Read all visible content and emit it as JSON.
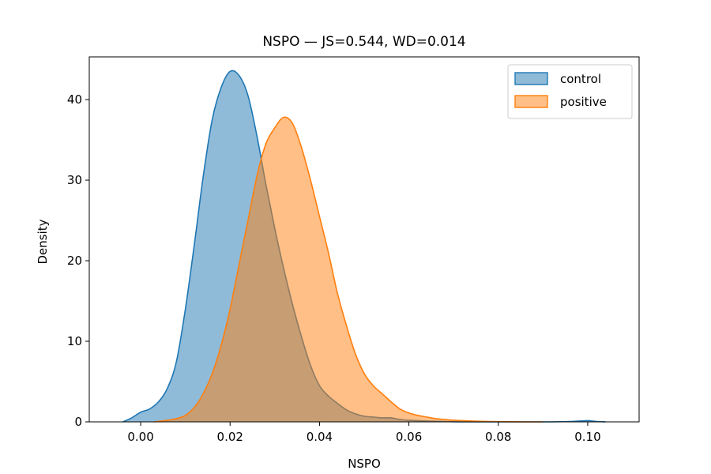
{
  "chart_data": {
    "type": "area",
    "title": "NSPO — JS=0.544, WD=0.014",
    "xlabel": "NSPO",
    "ylabel": "Density",
    "xlim": [
      -0.0115,
      0.1115
    ],
    "ylim": [
      0,
      45.3
    ],
    "xticks": [
      0.0,
      0.02,
      0.04,
      0.06,
      0.08,
      0.1
    ],
    "xtick_labels": [
      "0.00",
      "0.02",
      "0.04",
      "0.06",
      "0.08",
      "0.10"
    ],
    "yticks": [
      0,
      10,
      20,
      30,
      40
    ],
    "ytick_labels": [
      "0",
      "10",
      "20",
      "30",
      "40"
    ],
    "grid": false,
    "legend_position": "top-right",
    "series": [
      {
        "name": "control",
        "color": "#1f77b4",
        "fill": "#1f77b4",
        "fill_opacity": 0.5,
        "x": [
          -0.004,
          -0.002,
          0.0,
          0.002,
          0.004,
          0.006,
          0.008,
          0.01,
          0.012,
          0.014,
          0.016,
          0.018,
          0.02,
          0.022,
          0.024,
          0.026,
          0.028,
          0.03,
          0.032,
          0.034,
          0.036,
          0.038,
          0.04,
          0.042,
          0.044,
          0.046,
          0.048,
          0.05,
          0.052,
          0.054,
          0.056,
          0.058,
          0.06,
          0.064,
          0.068,
          0.072,
          0.08,
          0.09,
          0.096,
          0.098,
          0.1,
          0.102,
          0.104
        ],
        "y": [
          0.0,
          0.5,
          1.2,
          1.6,
          2.5,
          4.2,
          7.5,
          14.0,
          22.0,
          30.5,
          37.5,
          41.5,
          43.5,
          43.0,
          40.5,
          35.5,
          29.5,
          24.0,
          19.0,
          14.5,
          10.5,
          7.0,
          4.5,
          3.2,
          2.3,
          1.5,
          1.0,
          0.7,
          0.6,
          0.5,
          0.5,
          0.3,
          0.2,
          0.1,
          0.05,
          0.0,
          0.0,
          0.0,
          0.05,
          0.1,
          0.15,
          0.05,
          0.0
        ]
      },
      {
        "name": "positive",
        "color": "#ff7f0e",
        "fill": "#ff7f0e",
        "fill_opacity": 0.5,
        "x": [
          0.003,
          0.006,
          0.008,
          0.01,
          0.012,
          0.014,
          0.016,
          0.018,
          0.02,
          0.022,
          0.024,
          0.026,
          0.028,
          0.03,
          0.032,
          0.034,
          0.036,
          0.038,
          0.04,
          0.042,
          0.044,
          0.046,
          0.048,
          0.05,
          0.052,
          0.054,
          0.056,
          0.058,
          0.06,
          0.062,
          0.064,
          0.066,
          0.068,
          0.07,
          0.074,
          0.078,
          0.082,
          0.086,
          0.09
        ],
        "y": [
          0.0,
          0.2,
          0.4,
          0.8,
          1.8,
          3.5,
          6.0,
          9.5,
          14.0,
          19.5,
          25.0,
          30.5,
          34.5,
          36.5,
          37.8,
          37.0,
          34.0,
          30.0,
          25.5,
          21.0,
          16.0,
          12.0,
          8.5,
          6.0,
          4.5,
          3.5,
          2.5,
          1.6,
          1.1,
          0.8,
          0.6,
          0.4,
          0.3,
          0.2,
          0.1,
          0.05,
          0.02,
          0.0,
          0.0
        ]
      }
    ]
  }
}
